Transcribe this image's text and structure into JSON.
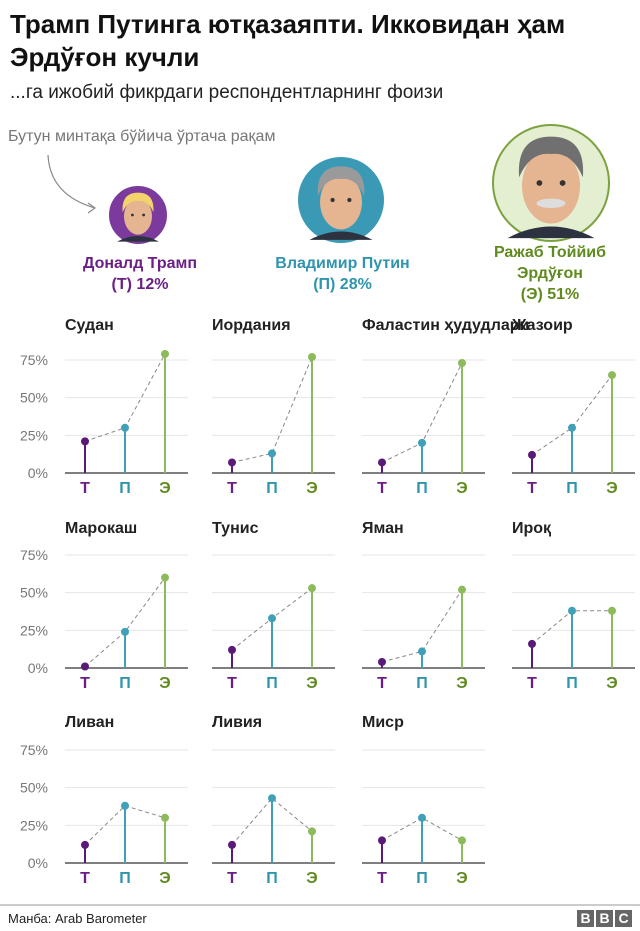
{
  "title": "Трамп Путинга ютқазаяпти. Икковидан ҳам Эрдўғон кучли",
  "subtitle": "...га ижобий фикрдаги респондентларнинг фоизи",
  "annotation": "Бутун минтақа бўйича ўртача рақам",
  "candidates": [
    {
      "name": "Доналд Трамп",
      "avg": "(Т) 12%",
      "color": "#6b1f86",
      "ring": "#7b3a9c"
    },
    {
      "name": "Владимир Путин",
      "avg": "(П) 28%",
      "color": "#2f94ad",
      "ring": "#3a9ab5"
    },
    {
      "name_line1": "Ражаб Тоййиб",
      "name_line2": "Эрдўғон",
      "avg": "(Э) 51%",
      "color": "#5f8a1e",
      "ring": "#7ba23f"
    }
  ],
  "footer": {
    "source": "Манба: Arab Barometer",
    "logo": "BBC"
  },
  "chart_data": {
    "type": "line",
    "categories": [
      "Т",
      "П",
      "Э"
    ],
    "category_colors": [
      "#5a1a78",
      "#3fa0b8",
      "#8dba5b"
    ],
    "yticks": [
      "0%",
      "25%",
      "50%",
      "75%"
    ],
    "ylim": [
      0,
      75
    ],
    "grid": true,
    "panels": [
      {
        "title": "Судан",
        "values": [
          21,
          30,
          79
        ]
      },
      {
        "title": "Иордания",
        "values": [
          7,
          13,
          77
        ]
      },
      {
        "title": "Фаластин ҳудудлари",
        "values": [
          7,
          20,
          73
        ]
      },
      {
        "title": "Жазоир",
        "values": [
          12,
          30,
          65
        ]
      },
      {
        "title": "Марокаш",
        "values": [
          1,
          24,
          60
        ]
      },
      {
        "title": "Тунис",
        "values": [
          12,
          33,
          53
        ]
      },
      {
        "title": "Яман",
        "values": [
          4,
          11,
          52
        ]
      },
      {
        "title": "Ироқ",
        "values": [
          16,
          38,
          38
        ]
      },
      {
        "title": "Ливан",
        "values": [
          12,
          38,
          30
        ]
      },
      {
        "title": "Ливия",
        "values": [
          12,
          43,
          21
        ]
      },
      {
        "title": "Миср",
        "values": [
          15,
          30,
          15
        ]
      }
    ]
  }
}
